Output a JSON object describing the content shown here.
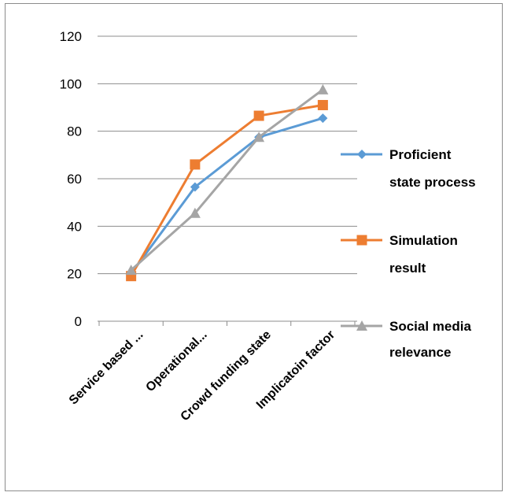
{
  "chart_data": {
    "type": "line",
    "categories": [
      "Service based ...",
      "Operational...",
      "Crowd funding state",
      "Implicatoin factor"
    ],
    "series": [
      {
        "name": "Proficient state process",
        "values": [
          20,
          56.5,
          77.5,
          85.5
        ],
        "color": "#5b9bd5",
        "marker": "diamond"
      },
      {
        "name": "Simulation result",
        "values": [
          19,
          66,
          86.5,
          91
        ],
        "color": "#ed7d31",
        "marker": "square"
      },
      {
        "name": "Social media relevance",
        "values": [
          21.5,
          45.5,
          77.5,
          97.5
        ],
        "color": "#a5a5a5",
        "marker": "triangle"
      }
    ],
    "yticks": [
      0,
      20,
      40,
      60,
      80,
      100,
      120
    ],
    "ylim": [
      0,
      120
    ],
    "grid": true,
    "legend_position": "right"
  }
}
